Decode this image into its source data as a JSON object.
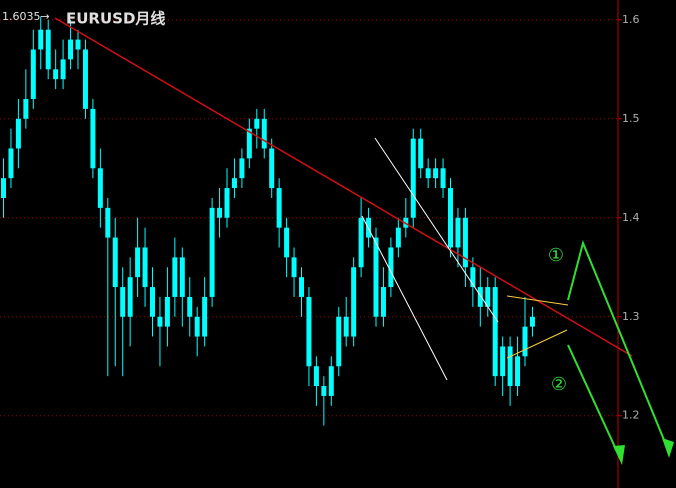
{
  "chart_data": {
    "type": "candlestick",
    "title": "EURUSD月线",
    "high_label": "1.6035→",
    "annotations": [
      "①",
      "②"
    ],
    "color": "#00ffff",
    "ylim": [
      1.127,
      1.62
    ],
    "yticks": [
      1.2,
      1.3,
      1.4,
      1.5,
      1.6
    ],
    "grid": true,
    "open": [
      1.42,
      1.44,
      1.47,
      1.5,
      1.52,
      1.57,
      1.59,
      1.55,
      1.54,
      1.56,
      1.58,
      1.57,
      1.51,
      1.45,
      1.41,
      1.38,
      1.33,
      1.3,
      1.34,
      1.37,
      1.33,
      1.3,
      1.29,
      1.32,
      1.36,
      1.32,
      1.3,
      1.28,
      1.32,
      1.41,
      1.4,
      1.43,
      1.44,
      1.46,
      1.49,
      1.5,
      1.47,
      1.43,
      1.39,
      1.36,
      1.34,
      1.32,
      1.25,
      1.23,
      1.22,
      1.25,
      1.3,
      1.28,
      1.35,
      1.4,
      1.38,
      1.3,
      1.33,
      1.37,
      1.39,
      1.4,
      1.48,
      1.45,
      1.44,
      1.45,
      1.43,
      1.37,
      1.4,
      1.35,
      1.33,
      1.31,
      1.33,
      1.24,
      1.27,
      1.23,
      1.26,
      1.29
    ],
    "high": [
      1.46,
      1.49,
      1.52,
      1.55,
      1.59,
      1.6035,
      1.6,
      1.57,
      1.58,
      1.6,
      1.59,
      1.58,
      1.52,
      1.47,
      1.42,
      1.4,
      1.35,
      1.36,
      1.4,
      1.39,
      1.35,
      1.32,
      1.35,
      1.38,
      1.37,
      1.34,
      1.31,
      1.34,
      1.42,
      1.43,
      1.45,
      1.46,
      1.47,
      1.5,
      1.51,
      1.51,
      1.48,
      1.44,
      1.4,
      1.37,
      1.35,
      1.33,
      1.26,
      1.24,
      1.26,
      1.31,
      1.32,
      1.36,
      1.42,
      1.41,
      1.39,
      1.35,
      1.38,
      1.4,
      1.42,
      1.49,
      1.49,
      1.46,
      1.46,
      1.46,
      1.44,
      1.41,
      1.41,
      1.36,
      1.35,
      1.34,
      1.34,
      1.28,
      1.28,
      1.28,
      1.32,
      1.31
    ],
    "low": [
      1.4,
      1.43,
      1.45,
      1.49,
      1.51,
      1.55,
      1.54,
      1.53,
      1.53,
      1.55,
      1.55,
      1.5,
      1.44,
      1.39,
      1.24,
      1.25,
      1.24,
      1.27,
      1.32,
      1.31,
      1.28,
      1.25,
      1.27,
      1.3,
      1.29,
      1.28,
      1.26,
      1.27,
      1.31,
      1.38,
      1.39,
      1.42,
      1.43,
      1.45,
      1.47,
      1.46,
      1.42,
      1.37,
      1.34,
      1.32,
      1.3,
      1.23,
      1.21,
      1.19,
      1.21,
      1.24,
      1.27,
      1.27,
      1.34,
      1.37,
      1.29,
      1.29,
      1.32,
      1.36,
      1.38,
      1.39,
      1.44,
      1.43,
      1.43,
      1.42,
      1.36,
      1.35,
      1.33,
      1.31,
      1.29,
      1.3,
      1.23,
      1.22,
      1.21,
      1.22,
      1.25,
      1.28
    ],
    "close": [
      1.44,
      1.47,
      1.5,
      1.52,
      1.57,
      1.59,
      1.55,
      1.54,
      1.56,
      1.58,
      1.57,
      1.51,
      1.45,
      1.41,
      1.38,
      1.33,
      1.3,
      1.34,
      1.37,
      1.33,
      1.3,
      1.29,
      1.32,
      1.36,
      1.32,
      1.3,
      1.28,
      1.32,
      1.41,
      1.4,
      1.43,
      1.44,
      1.46,
      1.49,
      1.5,
      1.47,
      1.43,
      1.39,
      1.36,
      1.34,
      1.32,
      1.25,
      1.23,
      1.22,
      1.25,
      1.3,
      1.28,
      1.35,
      1.4,
      1.38,
      1.3,
      1.33,
      1.37,
      1.39,
      1.4,
      1.48,
      1.45,
      1.44,
      1.45,
      1.43,
      1.37,
      1.4,
      1.35,
      1.33,
      1.31,
      1.33,
      1.24,
      1.27,
      1.23,
      1.26,
      1.29,
      1.3
    ]
  }
}
